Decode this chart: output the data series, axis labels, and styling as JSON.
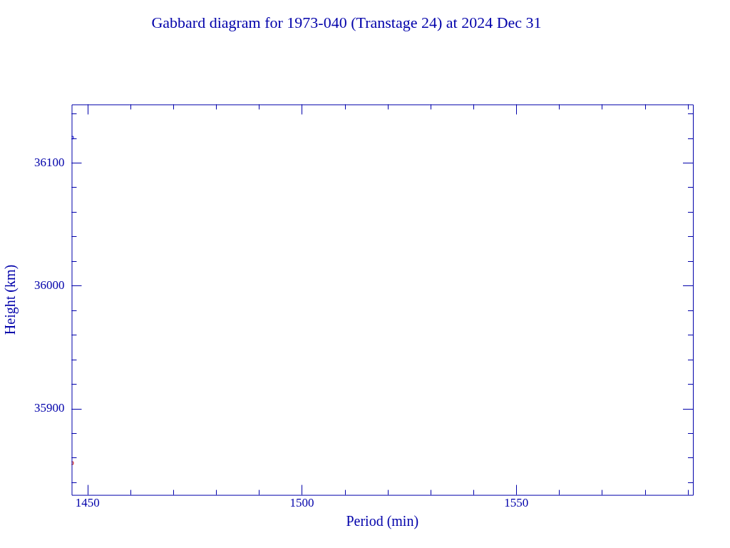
{
  "chart_data": {
    "type": "scatter",
    "title": "Gabbard diagram for 1973-040 (Transtage 24) at 2024 Dec 31",
    "xlabel": "Period (min)",
    "ylabel": "Height (km)",
    "series": [
      {
        "color": "#0000cc",
        "x": [
          1446.4
        ],
        "values": [
          36120.4
        ]
      },
      {
        "color": "#cc0000",
        "x": [
          1446.4
        ],
        "values": [
          35855.6
        ]
      }
    ],
    "marker": "square",
    "xlim": [
      1446.3,
      1591.2
    ],
    "ylim": [
      35829.7,
      36147.4
    ],
    "xticks": [
      1450,
      {
        "value": 1460,
        "label": null
      },
      {
        "value": 1470,
        "label": null
      },
      {
        "value": 1480,
        "label": null
      },
      {
        "value": 1490,
        "label": null
      },
      1500,
      {
        "value": 1510,
        "label": null
      },
      {
        "value": 1520,
        "label": null
      },
      {
        "value": 1530,
        "label": null
      },
      {
        "value": 1540,
        "label": null
      },
      1550,
      {
        "value": 1560,
        "label": null
      },
      {
        "value": 1570,
        "label": null
      },
      {
        "value": 1580,
        "label": null
      },
      {
        "value": 1590,
        "label": null
      }
    ],
    "yticks": [
      {
        "value": 35840,
        "label": null
      },
      {
        "value": 35860,
        "label": null
      },
      {
        "value": 35880,
        "label": null
      },
      35900,
      {
        "value": 35920,
        "label": null
      },
      {
        "value": 35940,
        "label": null
      },
      {
        "value": 35960,
        "label": null
      },
      {
        "value": 35980,
        "label": null
      },
      36000,
      {
        "value": 36020,
        "label": null
      },
      {
        "value": 36040,
        "label": null
      },
      {
        "value": 36060,
        "label": null
      },
      {
        "value": 36080,
        "label": null
      },
      36100,
      {
        "value": 36120,
        "label": null
      },
      {
        "value": 36140,
        "label": null
      }
    ]
  }
}
